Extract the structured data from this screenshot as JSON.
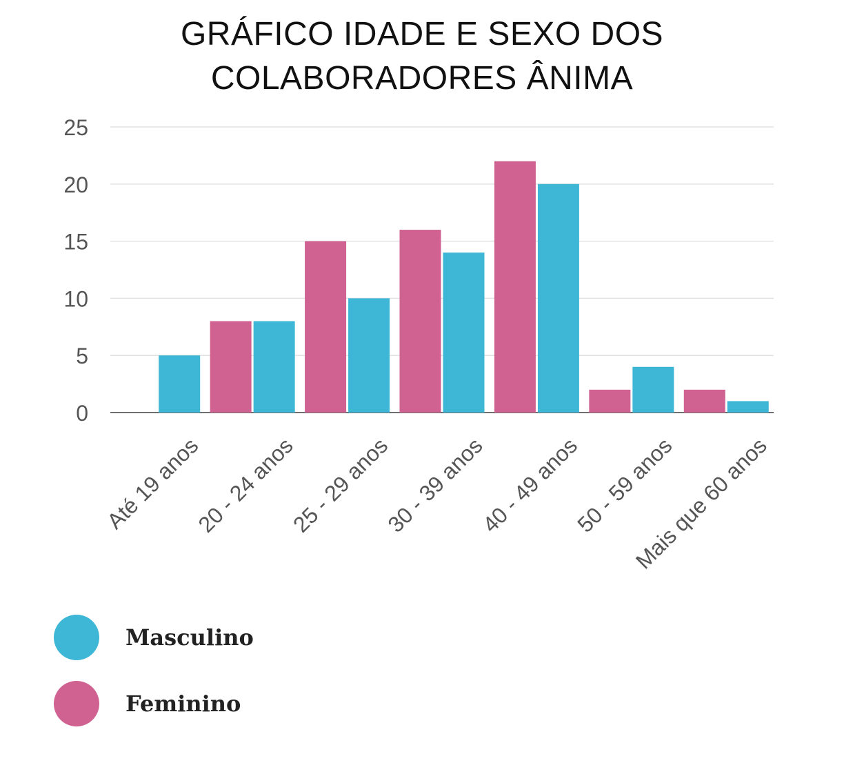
{
  "chart_data": {
    "type": "bar",
    "title": [
      "GRÁFICO IDADE E SEXO DOS",
      "COLABORADORES ÂNIMA"
    ],
    "categories": [
      "Até 19 anos",
      "20 - 24 anos",
      "25 - 29 anos",
      "30 - 39 anos",
      "40 - 49 anos",
      "50 - 59 anos",
      "Mais que 60 anos"
    ],
    "series": [
      {
        "name": "Feminino",
        "color": "#d06292",
        "values": [
          0,
          8,
          15,
          16,
          22,
          2,
          2
        ]
      },
      {
        "name": "Masculino",
        "color": "#3eb7d6",
        "values": [
          5,
          8,
          10,
          14,
          20,
          4,
          1
        ]
      }
    ],
    "ylim": [
      0,
      25
    ],
    "yticks": [
      0,
      5,
      10,
      15,
      20,
      25
    ],
    "xlabel": "",
    "ylabel": "",
    "grid": true,
    "legend_placement": "bottom-left"
  },
  "legend": [
    {
      "label": "Masculino",
      "color": "#3eb7d6"
    },
    {
      "label": "Feminino",
      "color": "#d06292"
    }
  ]
}
